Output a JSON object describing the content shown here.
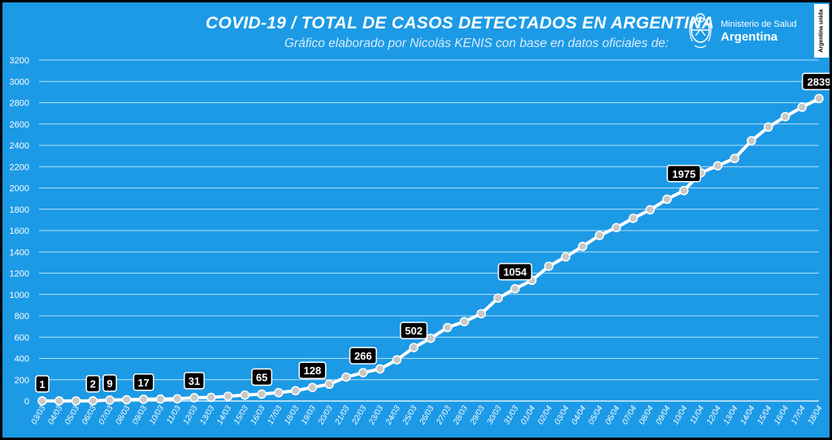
{
  "title": "COVID-19  /  TOTAL DE CASOS DETECTADOS EN ARGENTINA",
  "subtitle": "Gráfico elaborado por Nicolás KENIS con base en datos oficiales de:",
  "logo": {
    "ministry": "Ministerio de Salud",
    "country": "Argentina",
    "seal_icon": "argentina-seal-icon"
  },
  "badge": "Argentina unida",
  "colors": {
    "background": "#1c9ae6",
    "line": "#ffffff",
    "marker": "#c8c8c8",
    "label_bg": "#000000",
    "grid": "#ffffff"
  },
  "chart_data": {
    "type": "line",
    "title": "COVID-19  /  TOTAL DE CASOS DETECTADOS EN ARGENTINA",
    "xlabel": "",
    "ylabel": "",
    "ylim": [
      0,
      3200
    ],
    "yticks": [
      0,
      200,
      400,
      600,
      800,
      1000,
      1200,
      1400,
      1600,
      1800,
      2000,
      2200,
      2400,
      2600,
      2800,
      3000,
      3200
    ],
    "grid": true,
    "legend": "none",
    "categories": [
      "03/03",
      "04/03",
      "05/03",
      "06/03",
      "07/03",
      "08/03",
      "09/03",
      "10/03",
      "11/03",
      "12/03",
      "13/03",
      "14/03",
      "15/03",
      "16/03",
      "17/03",
      "18/03",
      "19/03",
      "20/03",
      "21/03",
      "22/03",
      "23/03",
      "24/03",
      "25/03",
      "26/03",
      "27/03",
      "28/03",
      "29/03",
      "30/03",
      "31/03",
      "01/04",
      "02/04",
      "03/04",
      "04/04",
      "05/04",
      "06/04",
      "07/04",
      "08/04",
      "09/04",
      "10/04",
      "11/04",
      "12/04",
      "13/04",
      "14/04",
      "15/04",
      "16/04",
      "17/04",
      "18/04"
    ],
    "values": [
      1,
      1,
      1,
      2,
      9,
      12,
      17,
      19,
      21,
      31,
      34,
      45,
      56,
      65,
      79,
      97,
      128,
      158,
      225,
      266,
      301,
      387,
      502,
      589,
      690,
      745,
      820,
      966,
      1054,
      1133,
      1265,
      1353,
      1451,
      1554,
      1628,
      1715,
      1795,
      1894,
      1975,
      2142,
      2208,
      2277,
      2443,
      2571,
      2669,
      2758,
      2839
    ],
    "data_labels": [
      {
        "index": 0,
        "value": "1"
      },
      {
        "index": 3,
        "value": "2"
      },
      {
        "index": 4,
        "value": "9"
      },
      {
        "index": 6,
        "value": "17"
      },
      {
        "index": 9,
        "value": "31"
      },
      {
        "index": 13,
        "value": "65"
      },
      {
        "index": 16,
        "value": "128"
      },
      {
        "index": 19,
        "value": "266"
      },
      {
        "index": 22,
        "value": "502"
      },
      {
        "index": 28,
        "value": "1054"
      },
      {
        "index": 38,
        "value": "1975"
      },
      {
        "index": 46,
        "value": "2839"
      }
    ]
  }
}
